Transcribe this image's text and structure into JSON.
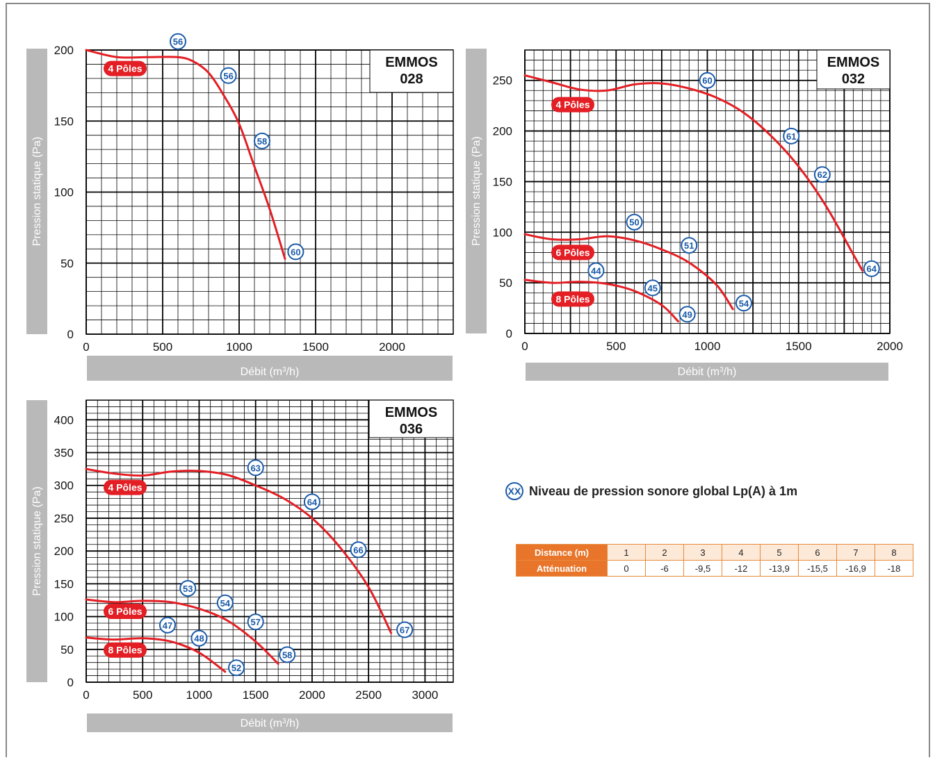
{
  "colors": {
    "curve": "#e31e24",
    "marker": "#1a5aa8",
    "axis_band": "#b9b9b9",
    "accent": "#e8752a"
  },
  "charts": [
    {
      "id": "c028",
      "title_line1": "EMMOS",
      "title_line2": "028",
      "xlabel_main": "Débit (m",
      "xlabel_sup": "3",
      "xlabel_end": "/h)",
      "ylabel": "Pression statique  (Pa)"
    },
    {
      "id": "c032",
      "title_line1": "EMMOS",
      "title_line2": "032",
      "xlabel_main": "Débit (m",
      "xlabel_sup": "3",
      "xlabel_end": "/h)",
      "ylabel": "Pression statique  (Pa)"
    },
    {
      "id": "c036",
      "title_line1": "EMMOS",
      "title_line2": "036",
      "xlabel_main": "Débit (m",
      "xlabel_sup": "3",
      "xlabel_end": "/h)",
      "ylabel": "Pression statique  (Pa)"
    }
  ],
  "chart_data": [
    {
      "type": "line",
      "title": "EMMOS 028",
      "xlabel": "Débit (m3/h)",
      "ylabel": "Pression statique  (Pa)",
      "xlim": [
        0,
        2400
      ],
      "ylim": [
        0,
        200
      ],
      "xticks": [
        0,
        500,
        1000,
        1500,
        2000
      ],
      "yticks": [
        0,
        50,
        100,
        150,
        200
      ],
      "grid": true,
      "series": [
        {
          "name": "4 Pôles",
          "x": [
            0,
            200,
            400,
            600,
            700,
            800,
            900,
            1000,
            1100,
            1200,
            1300
          ],
          "y": [
            200,
            195,
            195,
            195,
            192,
            184,
            168,
            148,
            118,
            88,
            53
          ],
          "label_at": [
            300,
            187
          ],
          "markers": [
            {
              "x": 600,
              "y": 206,
              "label": "56"
            },
            {
              "x": 930,
              "y": 182,
              "label": "56"
            },
            {
              "x": 1150,
              "y": 136,
              "label": "58"
            },
            {
              "x": 1370,
              "y": 58,
              "label": "60"
            }
          ]
        }
      ]
    },
    {
      "type": "line",
      "title": "EMMOS 032",
      "xlabel": "Débit (m3/h)",
      "ylabel": "Pression statique  (Pa)",
      "xlim": [
        0,
        2000
      ],
      "ylim": [
        0,
        280
      ],
      "xticks": [
        0,
        500,
        1000,
        1500,
        2000
      ],
      "yticks": [
        0,
        50,
        100,
        150,
        200,
        250
      ],
      "grid": true,
      "series": [
        {
          "name": "4 Pôles",
          "x": [
            0,
            150,
            300,
            450,
            600,
            750,
            900,
            1050,
            1200,
            1350,
            1500,
            1650,
            1800,
            1850
          ],
          "y": [
            255,
            248,
            241,
            240,
            246,
            247,
            242,
            233,
            218,
            195,
            165,
            126,
            78,
            62
          ],
          "label_at": [
            235,
            226
          ],
          "markers": [
            {
              "x": 1000,
              "y": 250,
              "label": "60"
            },
            {
              "x": 1460,
              "y": 195,
              "label": "61"
            },
            {
              "x": 1630,
              "y": 157,
              "label": "62"
            },
            {
              "x": 1900,
              "y": 64,
              "label": "64"
            }
          ]
        },
        {
          "name": "6 Pôles",
          "x": [
            0,
            150,
            300,
            450,
            600,
            750,
            900,
            1050,
            1140
          ],
          "y": [
            98,
            93,
            93,
            96,
            92,
            83,
            70,
            48,
            24
          ],
          "label_at": [
            255,
            80
          ],
          "markers": [
            {
              "x": 600,
              "y": 110,
              "label": "50"
            },
            {
              "x": 900,
              "y": 87,
              "label": "51"
            },
            {
              "x": 1200,
              "y": 30,
              "label": "54"
            }
          ]
        },
        {
          "name": "8 Pôles",
          "x": [
            0,
            150,
            300,
            450,
            600,
            750,
            840
          ],
          "y": [
            53,
            50,
            51,
            49,
            42,
            28,
            12
          ],
          "label_at": [
            255,
            34
          ],
          "markers": [
            {
              "x": 390,
              "y": 62,
              "label": "44"
            },
            {
              "x": 700,
              "y": 45,
              "label": "45"
            },
            {
              "x": 890,
              "y": 19,
              "label": "49"
            }
          ]
        }
      ]
    },
    {
      "type": "line",
      "title": "EMMOS 036",
      "xlabel": "Débit (m3/h)",
      "ylabel": "Pression statique  (Pa)",
      "xlim": [
        0,
        3250
      ],
      "ylim": [
        0,
        430
      ],
      "xticks": [
        0,
        500,
        1000,
        1500,
        2000,
        2500,
        3000
      ],
      "yticks": [
        0,
        50,
        100,
        150,
        200,
        250,
        300,
        350,
        400
      ],
      "grid": true,
      "series": [
        {
          "name": "4 Pôles",
          "x": [
            0,
            250,
            500,
            750,
            1000,
            1250,
            1500,
            1750,
            2000,
            2250,
            2500,
            2700
          ],
          "y": [
            325,
            318,
            315,
            321,
            322,
            316,
            300,
            280,
            250,
            205,
            145,
            75
          ],
          "label_at": [
            430,
            297
          ],
          "markers": [
            {
              "x": 1500,
              "y": 327,
              "label": "63"
            },
            {
              "x": 2000,
              "y": 275,
              "label": "64"
            },
            {
              "x": 2410,
              "y": 202,
              "label": "66"
            },
            {
              "x": 2820,
              "y": 80,
              "label": "67"
            }
          ]
        },
        {
          "name": "6 Pôles",
          "x": [
            0,
            250,
            500,
            750,
            1000,
            1250,
            1500,
            1700
          ],
          "y": [
            126,
            122,
            124,
            122,
            112,
            94,
            62,
            28
          ],
          "label_at": [
            430,
            108
          ],
          "markers": [
            {
              "x": 900,
              "y": 143,
              "label": "53"
            },
            {
              "x": 1230,
              "y": 121,
              "label": "54"
            },
            {
              "x": 1500,
              "y": 92,
              "label": "57"
            },
            {
              "x": 1780,
              "y": 42,
              "label": "58"
            }
          ]
        },
        {
          "name": "8 Pôles",
          "x": [
            0,
            250,
            500,
            750,
            1000,
            1230
          ],
          "y": [
            68,
            65,
            67,
            62,
            45,
            16
          ],
          "label_at": [
            430,
            49
          ],
          "markers": [
            {
              "x": 720,
              "y": 87,
              "label": "47"
            },
            {
              "x": 1000,
              "y": 67,
              "label": "48"
            },
            {
              "x": 1330,
              "y": 22,
              "label": "52"
            }
          ]
        }
      ]
    }
  ],
  "legend": {
    "symbol": "XX",
    "text": "Niveau de pression sonore global  Lp(A) à 1m"
  },
  "table": {
    "row1_header": "Distance (m)",
    "row1": [
      "1",
      "2",
      "3",
      "4",
      "5",
      "6",
      "7",
      "8"
    ],
    "row2_header": "Atténuation",
    "row2": [
      "0",
      "-6",
      "-9,5",
      "-12",
      "-13,9",
      "-15,5",
      "-16,9",
      "-18"
    ]
  }
}
